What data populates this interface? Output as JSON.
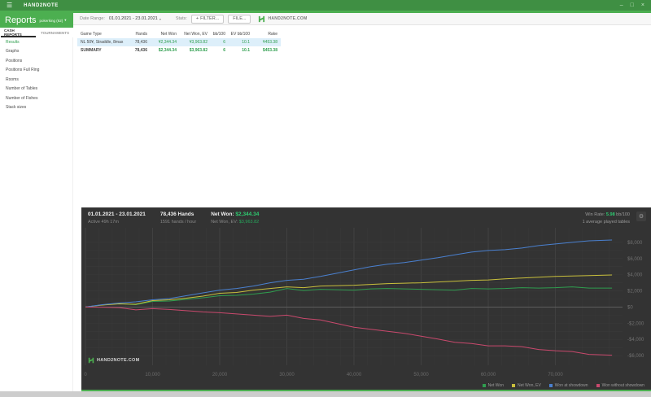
{
  "icons": {
    "menu": "☰",
    "caret_down": "▾",
    "plus": "+",
    "gear": "⚙"
  },
  "titlebar": {
    "app_name": "HAND2NOTE",
    "window_controls": [
      {
        "name": "minimize",
        "glyph": "–"
      },
      {
        "name": "maximize",
        "glyph": "□"
      },
      {
        "name": "close",
        "glyph": "×"
      }
    ]
  },
  "header": {
    "title": "Reports",
    "account": "pokerking (62)"
  },
  "tabs": [
    {
      "label": "CASH REPORTS",
      "active": true
    },
    {
      "label": "TOURNAMENTS",
      "active": false
    }
  ],
  "sidebar": {
    "items": [
      {
        "label": "Results",
        "active": true
      },
      {
        "label": "Graphs",
        "active": false
      },
      {
        "label": "Positions",
        "active": false
      },
      {
        "label": "Positions Full Ring",
        "active": false
      },
      {
        "label": "Rooms",
        "active": false
      },
      {
        "label": "Number of Tables",
        "active": false
      },
      {
        "label": "Number of Fishes",
        "active": false
      },
      {
        "label": "Stack sizes",
        "active": false
      }
    ]
  },
  "toolbar": {
    "date_range_label": "Date Range:",
    "date_range_value": "01.01.2021 - 23.01.2021",
    "stats_label": "Stats:",
    "filter_button": "FILTER...",
    "file_button": "FILE...",
    "brand": "HAND2NOTE.COM"
  },
  "table": {
    "columns": [
      "Game Type",
      "Hands",
      "Net Won",
      "Net Won, EV",
      "bb/100",
      "EV bb/100",
      "Rake"
    ],
    "rows": [
      {
        "cells": [
          "NL 50¥, Straddle, 8max",
          "78,436",
          "¥2,344.34",
          "¥3,963.82",
          "6",
          "10.1",
          "¥453.38"
        ],
        "highlight": true,
        "summary": false
      },
      {
        "cells": [
          "SUMMARY",
          "78,436",
          "$2,344.34",
          "$3,963.82",
          "6",
          "10.1",
          "$453.38"
        ],
        "highlight": false,
        "summary": true
      }
    ]
  },
  "chart_header": {
    "date_range": "01.01.2021 - 23.01.2021",
    "active_time": "Active 49h 17m",
    "hands": "78,436 Hands",
    "hands_per_hour": "1591 hands / hour",
    "net_won_label": "Net Won:",
    "net_won_value": "$2,344.34",
    "net_won_ev_label": "Net Won, EV:",
    "net_won_ev_value": "$3,963.82",
    "win_rate_label": "Win Rate:",
    "win_rate_value": "5.98",
    "win_rate_unit": "bb/100",
    "avg_tables": "1 average played tables",
    "watermark": "HAND2NOTE.COM"
  },
  "chart_data": {
    "type": "line",
    "x_label": "hands",
    "x_max": 80000,
    "x_ticks": [
      0,
      10000,
      20000,
      30000,
      40000,
      50000,
      60000,
      70000
    ],
    "y_range": [
      -7000,
      9000
    ],
    "y_tick_step": 2000,
    "grid": true,
    "legend_position": "bottom-right",
    "background": "#333333",
    "accent_green": "#4caf50",
    "x": [
      0,
      2500,
      5000,
      7500,
      10000,
      12500,
      15000,
      17500,
      20000,
      22500,
      25000,
      27500,
      30000,
      32500,
      35000,
      37500,
      40000,
      42500,
      45000,
      47500,
      50000,
      52500,
      55000,
      57500,
      60000,
      62500,
      65000,
      67500,
      70000,
      72500,
      75000,
      78436
    ],
    "series": [
      {
        "name": "Net Won",
        "color": "#2f9e4f",
        "values": [
          0,
          280,
          430,
          300,
          700,
          750,
          950,
          1150,
          1400,
          1450,
          1600,
          1850,
          2300,
          2050,
          2200,
          2150,
          2100,
          2250,
          2300,
          2250,
          2200,
          2150,
          2100,
          2300,
          2250,
          2300,
          2400,
          2350,
          2400,
          2500,
          2350,
          2344
        ]
      },
      {
        "name": "Net Won, EV",
        "color": "#c8bf3c",
        "values": [
          0,
          250,
          400,
          350,
          800,
          900,
          1100,
          1350,
          1700,
          1800,
          2100,
          2300,
          2500,
          2400,
          2600,
          2650,
          2700,
          2800,
          2900,
          2950,
          3000,
          3100,
          3200,
          3300,
          3350,
          3500,
          3600,
          3700,
          3800,
          3850,
          3900,
          3964
        ]
      },
      {
        "name": "Won at showdown",
        "color": "#4a80cf",
        "values": [
          0,
          300,
          500,
          650,
          900,
          1050,
          1400,
          1750,
          2100,
          2300,
          2600,
          3000,
          3300,
          3450,
          3800,
          4200,
          4600,
          5000,
          5300,
          5500,
          5800,
          6100,
          6450,
          6800,
          7000,
          7100,
          7300,
          7600,
          7800,
          8000,
          8200,
          8300
        ]
      },
      {
        "name": "Won without showdown",
        "color": "#c9496d",
        "values": [
          0,
          -20,
          -70,
          -350,
          -200,
          -300,
          -450,
          -600,
          -700,
          -850,
          -1000,
          -1150,
          -1000,
          -1400,
          -1600,
          -2050,
          -2500,
          -2750,
          -3000,
          -3250,
          -3600,
          -3950,
          -4350,
          -4500,
          -4800,
          -4800,
          -4900,
          -5250,
          -5400,
          -5500,
          -5850,
          -5956
        ]
      }
    ]
  }
}
